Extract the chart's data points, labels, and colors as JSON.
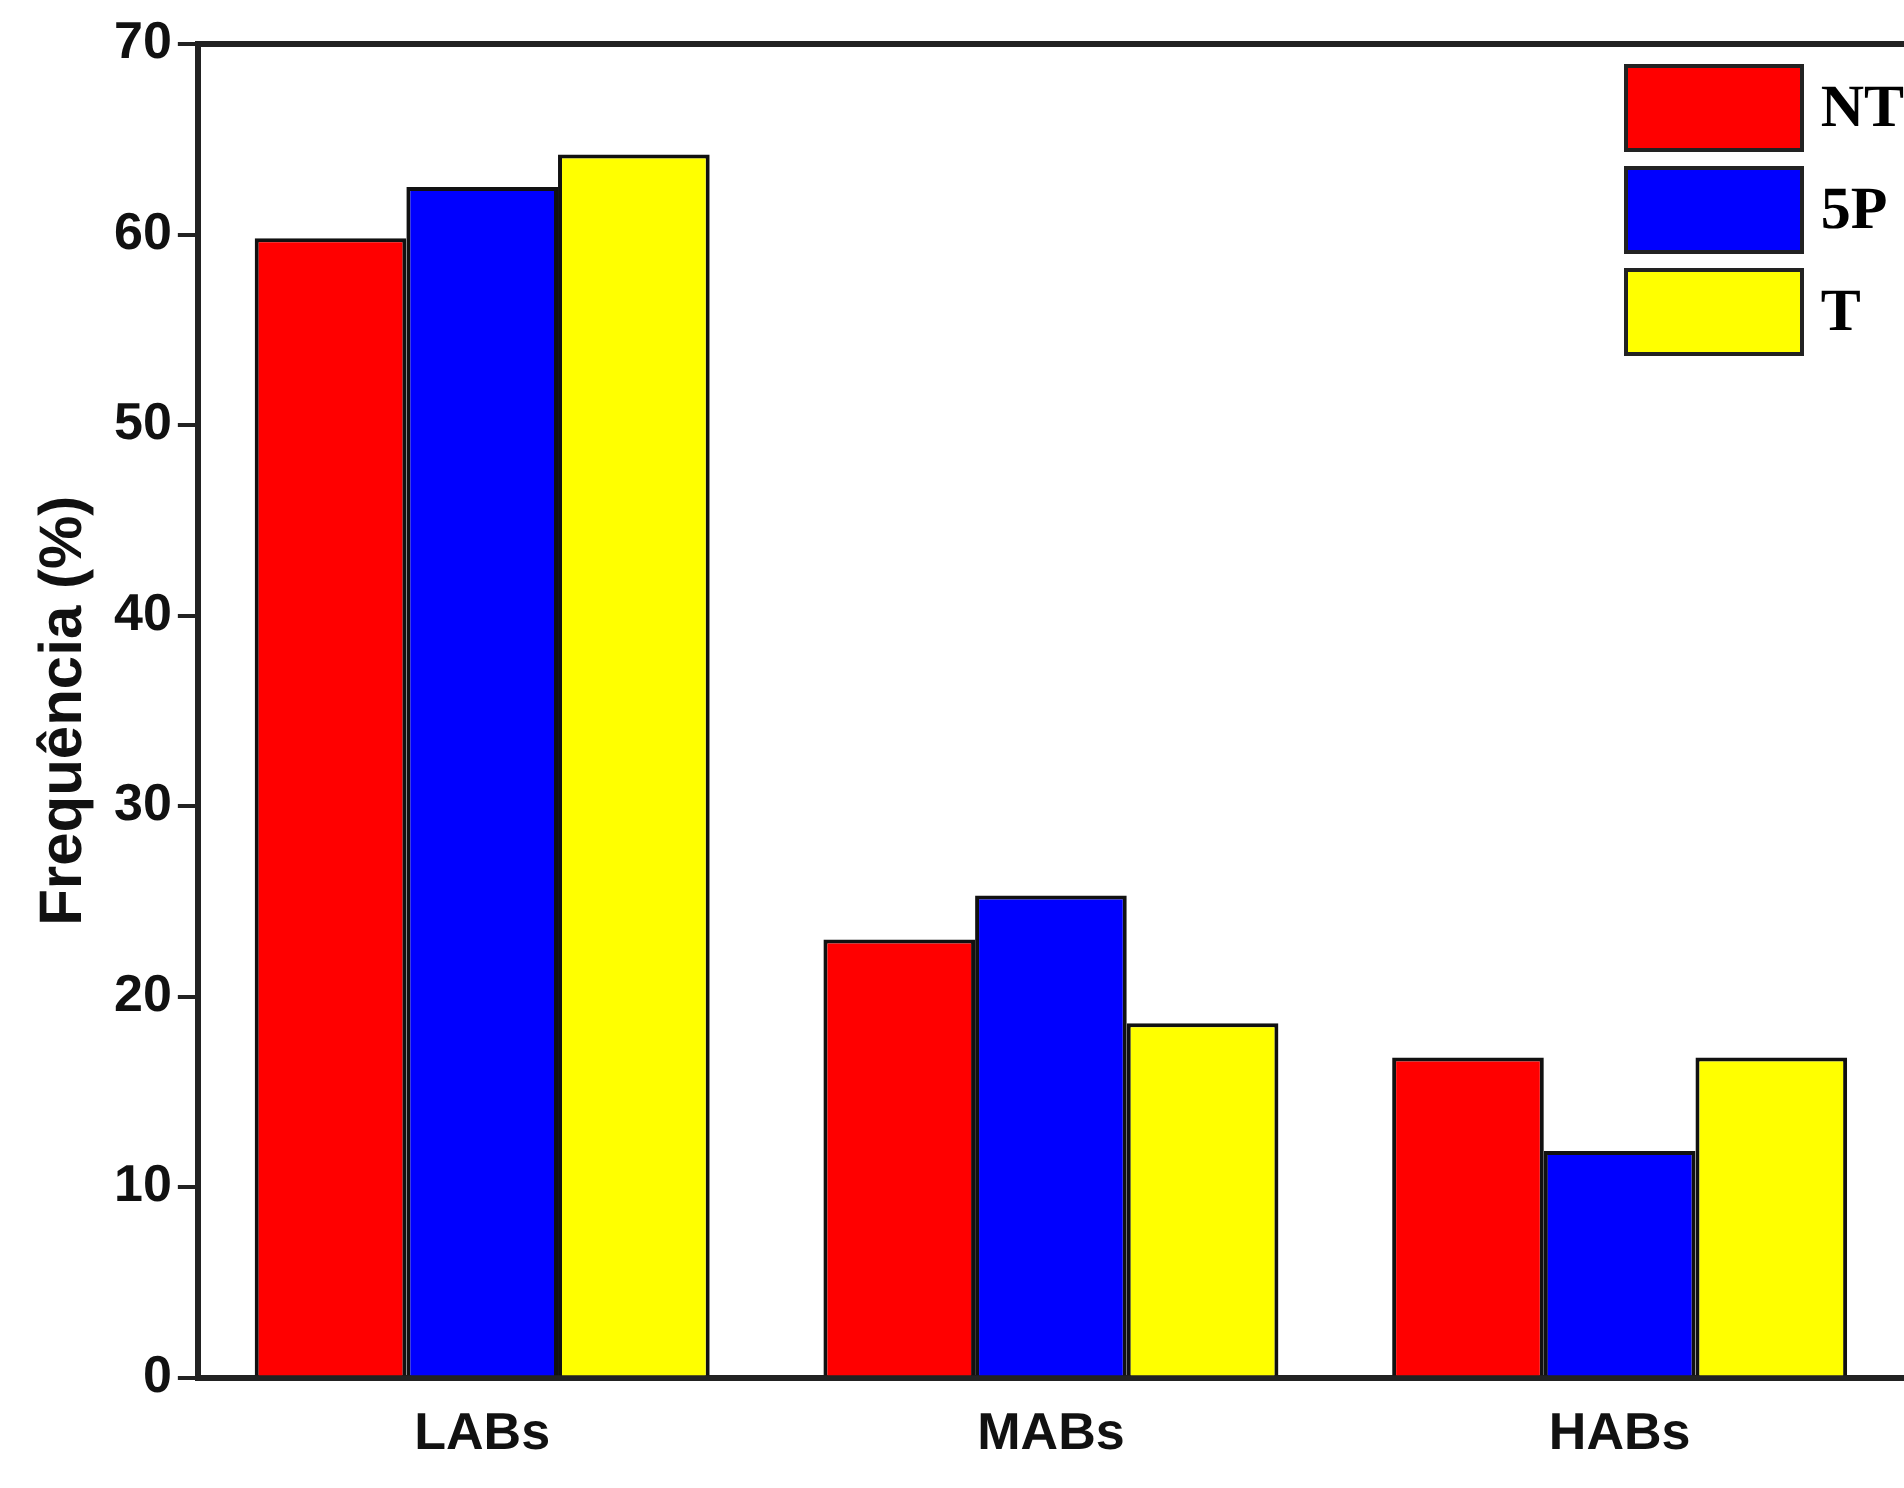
{
  "chart_data": {
    "type": "bar",
    "ylabel": "Frequência (%)",
    "categories": [
      "LABs",
      "MABs",
      "HABs"
    ],
    "series": [
      {
        "name": "NT",
        "color": "#ff0000",
        "values": [
          59.8,
          23.0,
          16.8
        ]
      },
      {
        "name": "5P",
        "color": "#0000ff",
        "values": [
          62.5,
          25.3,
          11.9
        ]
      },
      {
        "name": "T",
        "color": "#ffff00",
        "values": [
          64.2,
          18.6,
          16.8
        ]
      }
    ],
    "ylim": [
      0,
      70
    ],
    "yticks": [
      0,
      10,
      20,
      30,
      40,
      50,
      60,
      70
    ],
    "grid": false,
    "legend": "top right"
  }
}
